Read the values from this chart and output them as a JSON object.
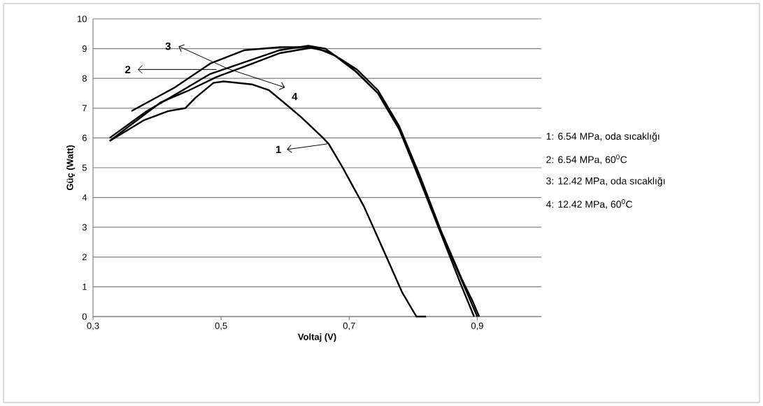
{
  "chart_data": {
    "type": "line",
    "xlabel": "Voltaj (V)",
    "ylabel": "Güç (Watt)",
    "xlim": [
      0.3,
      1.0
    ],
    "ylim": [
      0,
      10
    ],
    "xticks": [
      {
        "value": 0.3,
        "label": "0,3"
      },
      {
        "value": 0.5,
        "label": "0,5"
      },
      {
        "value": 0.7,
        "label": "0,7"
      },
      {
        "value": 0.9,
        "label": "0,9"
      }
    ],
    "yticks": [
      0,
      1,
      2,
      3,
      4,
      5,
      6,
      7,
      8,
      9,
      10
    ],
    "grid": "y",
    "marker": "none",
    "line_style": "solid",
    "series": [
      {
        "color": "#000000",
        "x": [
          0.326,
          0.38,
          0.417,
          0.444,
          0.46,
          0.488,
          0.504,
          0.548,
          0.575,
          0.603,
          0.625,
          0.657,
          0.668,
          0.69,
          0.723,
          0.75,
          0.783,
          0.805,
          0.82
        ],
        "values": [
          5.9,
          6.6,
          6.9,
          7.0,
          7.35,
          7.85,
          7.9,
          7.8,
          7.6,
          7.1,
          6.7,
          6.05,
          5.8,
          5.0,
          3.7,
          2.4,
          0.8,
          0,
          0
        ]
      },
      {
        "color": "#000000",
        "x": [
          0.326,
          0.384,
          0.428,
          0.483,
          0.537,
          0.592,
          0.636,
          0.663,
          0.707,
          0.745,
          0.778,
          0.81,
          0.843,
          0.874,
          0.895
        ],
        "values": [
          6.0,
          6.9,
          7.45,
          8.15,
          8.55,
          8.95,
          9.1,
          9.0,
          8.3,
          7.5,
          6.3,
          4.6,
          2.8,
          1.1,
          0
        ]
      },
      {
        "color": "#000000",
        "x": [
          0.36,
          0.428,
          0.483,
          0.537,
          0.592,
          0.636,
          0.668,
          0.712,
          0.745,
          0.778,
          0.81,
          0.843,
          0.876,
          0.892,
          0.903
        ],
        "values": [
          6.9,
          7.7,
          8.5,
          8.95,
          9.05,
          9.05,
          8.9,
          8.3,
          7.6,
          6.4,
          4.75,
          2.9,
          1.25,
          0.55,
          0
        ]
      },
      {
        "color": "#000000",
        "x": [
          0.326,
          0.406,
          0.45,
          0.493,
          0.537,
          0.592,
          0.646,
          0.679,
          0.712,
          0.745,
          0.778,
          0.81,
          0.843,
          0.876,
          0.9
        ],
        "values": [
          5.9,
          7.2,
          7.6,
          8.05,
          8.4,
          8.85,
          9.05,
          8.75,
          8.2,
          7.5,
          6.3,
          4.7,
          2.85,
          1.2,
          0
        ]
      }
    ],
    "annotations": [
      "1: 6.54 MPa, oda sıcaklığı",
      "2: 6.54 MPa, 60$^{0}$C",
      "3: 12.42 MPa, oda sıcaklığı",
      "4: 12.42 MPa, 60$^{0}$C",
      {
        "text": "1",
        "x": 0.666,
        "y": 5.8
      },
      {
        "text": "2",
        "x": 0.493,
        "y": 8.3
      },
      {
        "text": "3",
        "x": 0.51,
        "y": 8.33
      },
      {
        "text": "4",
        "x": 0.51,
        "y": 8.33
      }
    ]
  }
}
